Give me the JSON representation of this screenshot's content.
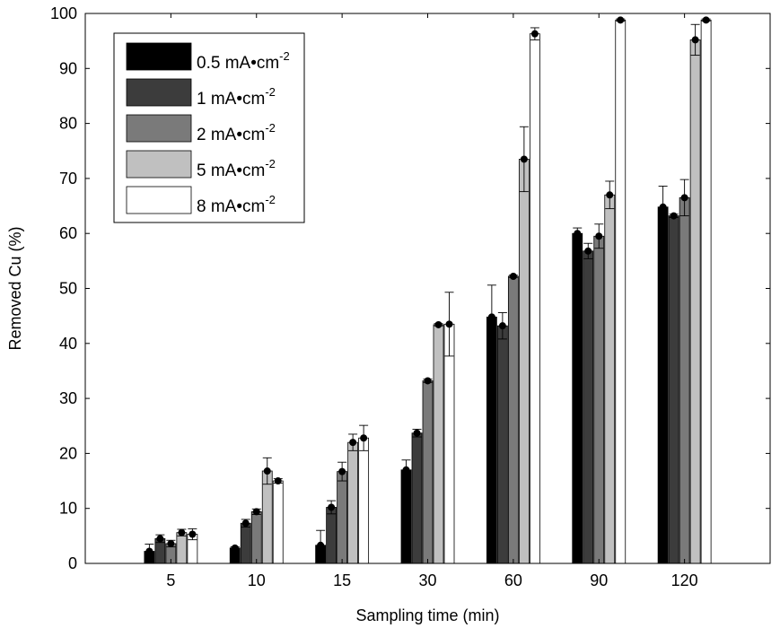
{
  "chart_data": {
    "type": "bar",
    "xlabel": "Sampling time (min)",
    "ylabel": "Removed Cu (%)",
    "categories": [
      "5",
      "10",
      "15",
      "30",
      "60",
      "90",
      "120"
    ],
    "ylim": [
      0,
      100
    ],
    "yticks": [
      0,
      10,
      20,
      30,
      40,
      50,
      60,
      70,
      80,
      90,
      100
    ],
    "grid": false,
    "legend_position": "top-left",
    "series": [
      {
        "name": "0.5 mA•cm-2",
        "label_main": "0.5 mA•cm",
        "label_sup": "-2",
        "color": "#000000",
        "values": [
          2.2,
          2.8,
          3.3,
          17.0,
          44.8,
          60.0,
          64.8
        ],
        "errors": [
          1.3,
          0.2,
          2.7,
          1.8,
          5.8,
          1.0,
          3.8
        ]
      },
      {
        "name": "1 mA•cm-2",
        "label_main": "1 mA•cm",
        "label_sup": "-2",
        "color": "#3c3c3c",
        "values": [
          4.5,
          7.3,
          10.2,
          23.7,
          43.2,
          56.8,
          63.2
        ],
        "errors": [
          0.7,
          0.7,
          1.2,
          0.7,
          2.4,
          1.4,
          0.3
        ]
      },
      {
        "name": "2 mA•cm-2",
        "label_main": "2 mA•cm",
        "label_sup": "-2",
        "color": "#7a7a7a",
        "values": [
          3.6,
          9.4,
          16.7,
          33.2,
          52.2,
          59.5,
          66.5
        ],
        "errors": [
          0.6,
          0.5,
          1.7,
          0.3,
          0.2,
          2.2,
          3.3
        ]
      },
      {
        "name": "5 mA•cm-2",
        "label_main": "5 mA•cm",
        "label_sup": "-2",
        "color": "#c0c0c0",
        "values": [
          5.6,
          16.8,
          22.0,
          43.4,
          73.5,
          67.0,
          95.2
        ],
        "errors": [
          0.6,
          2.4,
          1.5,
          0.2,
          5.9,
          2.5,
          2.8
        ]
      },
      {
        "name": "8 mA•cm-2",
        "label_main": "8 mA•cm",
        "label_sup": "-2",
        "color": "#ffffff",
        "values": [
          5.3,
          15.0,
          22.8,
          43.5,
          96.3,
          98.8,
          98.8
        ],
        "errors": [
          1.0,
          0.4,
          2.3,
          5.8,
          1.1,
          0.2,
          0.2
        ]
      }
    ]
  }
}
